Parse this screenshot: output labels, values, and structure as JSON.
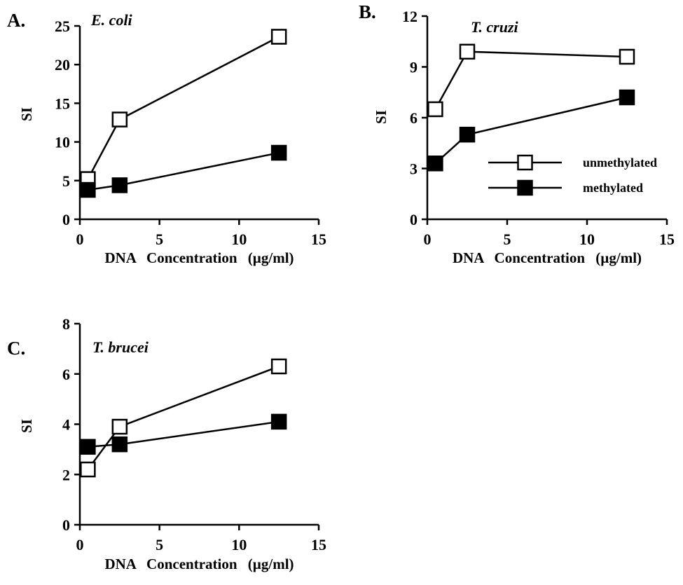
{
  "legend": {
    "unmethylated": "unmethylated",
    "methylated": "methylated"
  },
  "chart_data": [
    {
      "type": "line",
      "panel": "A.",
      "annotation": "E. coli",
      "xlabel": "DNA Concentration (µg/ml)",
      "ylabel": "SI",
      "xlim": [
        0,
        15
      ],
      "ylim": [
        0,
        25
      ],
      "xticks": [
        "0",
        "5",
        "10",
        "15"
      ],
      "yticks": [
        "0",
        "5",
        "10",
        "15",
        "20",
        "25"
      ],
      "grid": false,
      "legend": "none",
      "x": [
        0.5,
        2.5,
        12.5
      ],
      "series": [
        {
          "name": "unmethylated",
          "values": [
            5.2,
            12.9,
            23.6
          ],
          "marker": "open-square"
        },
        {
          "name": "methylated",
          "values": [
            3.8,
            4.4,
            8.6
          ],
          "marker": "filled-square"
        }
      ]
    },
    {
      "type": "line",
      "panel": "B.",
      "annotation": "T. cruzi",
      "xlabel": "DNA Concentration (µg/ml)",
      "ylabel": "SI",
      "xlim": [
        0,
        15
      ],
      "ylim": [
        0,
        12
      ],
      "xticks": [
        "0",
        "5",
        "10",
        "15"
      ],
      "yticks": [
        "0",
        "3",
        "6",
        "9",
        "12"
      ],
      "grid": false,
      "legend": "right",
      "x": [
        0.5,
        2.5,
        12.5
      ],
      "series": [
        {
          "name": "unmethylated",
          "values": [
            6.5,
            9.9,
            9.6
          ],
          "marker": "open-square"
        },
        {
          "name": "methylated",
          "values": [
            3.3,
            5.0,
            7.2
          ],
          "marker": "filled-square"
        }
      ]
    },
    {
      "type": "line",
      "panel": "C.",
      "annotation": "T. brucei",
      "xlabel": "DNA Concentration (µg/ml)",
      "ylabel": "SI",
      "xlim": [
        0,
        15
      ],
      "ylim": [
        0,
        8
      ],
      "xticks": [
        "0",
        "5",
        "10",
        "15"
      ],
      "yticks": [
        "0",
        "2",
        "4",
        "6",
        "8"
      ],
      "grid": false,
      "legend": "none",
      "x": [
        0.5,
        2.5,
        12.5
      ],
      "series": [
        {
          "name": "unmethylated",
          "values": [
            2.2,
            3.9,
            6.3
          ],
          "marker": "open-square"
        },
        {
          "name": "methylated",
          "values": [
            3.1,
            3.2,
            4.1
          ],
          "marker": "filled-square"
        }
      ]
    }
  ]
}
